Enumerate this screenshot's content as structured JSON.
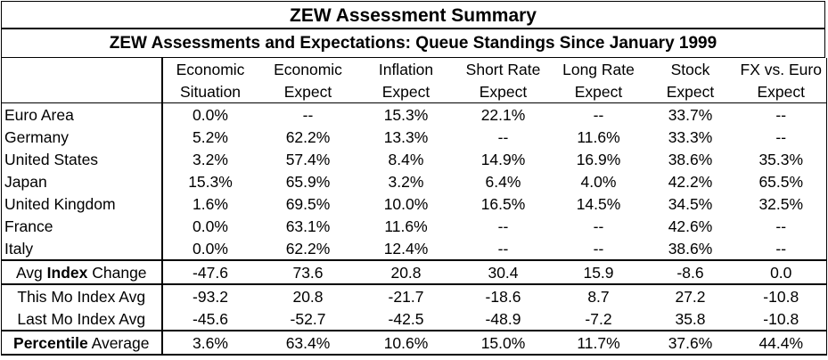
{
  "title": "ZEW Assessment Summary",
  "subtitle": "ZEW Assessments and Expectations: Queue Standings Since January 1999",
  "columns": [
    {
      "line1": "Economic",
      "line2": "Situation"
    },
    {
      "line1": "Economic",
      "line2": "Expect"
    },
    {
      "line1": "Inflation",
      "line2": "Expect"
    },
    {
      "line1": "Short Rate",
      "line2": "Expect"
    },
    {
      "line1": "Long Rate",
      "line2": "Expect"
    },
    {
      "line1": "Stock",
      "line2": "Expect"
    },
    {
      "line1": "FX vs. Euro",
      "line2": "Expect"
    }
  ],
  "rows": [
    {
      "label": "Euro Area",
      "values": [
        "0.0%",
        "--",
        "15.3%",
        "22.1%",
        "--",
        "33.7%",
        "--"
      ]
    },
    {
      "label": "Germany",
      "values": [
        "5.2%",
        "62.2%",
        "13.3%",
        "--",
        "11.6%",
        "33.3%",
        "--"
      ]
    },
    {
      "label": "United States",
      "values": [
        "3.2%",
        "57.4%",
        "8.4%",
        "14.9%",
        "16.9%",
        "38.6%",
        "35.3%"
      ]
    },
    {
      "label": "Japan",
      "values": [
        "15.3%",
        "65.9%",
        "3.2%",
        "6.4%",
        "4.0%",
        "42.2%",
        "65.5%"
      ]
    },
    {
      "label": "United Kingdom",
      "values": [
        "1.6%",
        "69.5%",
        "10.0%",
        "16.5%",
        "14.5%",
        "34.5%",
        "32.5%"
      ]
    },
    {
      "label": "France",
      "values": [
        "0.0%",
        "63.1%",
        "11.6%",
        "--",
        "--",
        "42.6%",
        "--"
      ]
    },
    {
      "label": "Italy",
      "values": [
        "0.0%",
        "62.2%",
        "12.4%",
        "--",
        "--",
        "38.6%",
        "--"
      ]
    }
  ],
  "summary": {
    "avg_change": {
      "prefix": "Avg ",
      "bold": "Index",
      "suffix": " Change",
      "values": [
        "-47.6",
        "73.6",
        "20.8",
        "30.4",
        "15.9",
        "-8.6",
        "0.0"
      ]
    },
    "this_mo": {
      "label": "This Mo Index Avg",
      "values": [
        "-93.2",
        "20.8",
        "-21.7",
        "-18.6",
        "8.7",
        "27.2",
        "-10.8"
      ]
    },
    "last_mo": {
      "label": "Last Mo Index Avg",
      "values": [
        "-45.6",
        "-52.7",
        "-42.5",
        "-48.9",
        "-7.2",
        "35.8",
        "-10.8"
      ]
    },
    "percentile": {
      "bold": "Percentile",
      "suffix": " Average",
      "values": [
        "3.6%",
        "63.4%",
        "10.6%",
        "15.0%",
        "11.7%",
        "37.6%",
        "44.4%"
      ]
    }
  }
}
